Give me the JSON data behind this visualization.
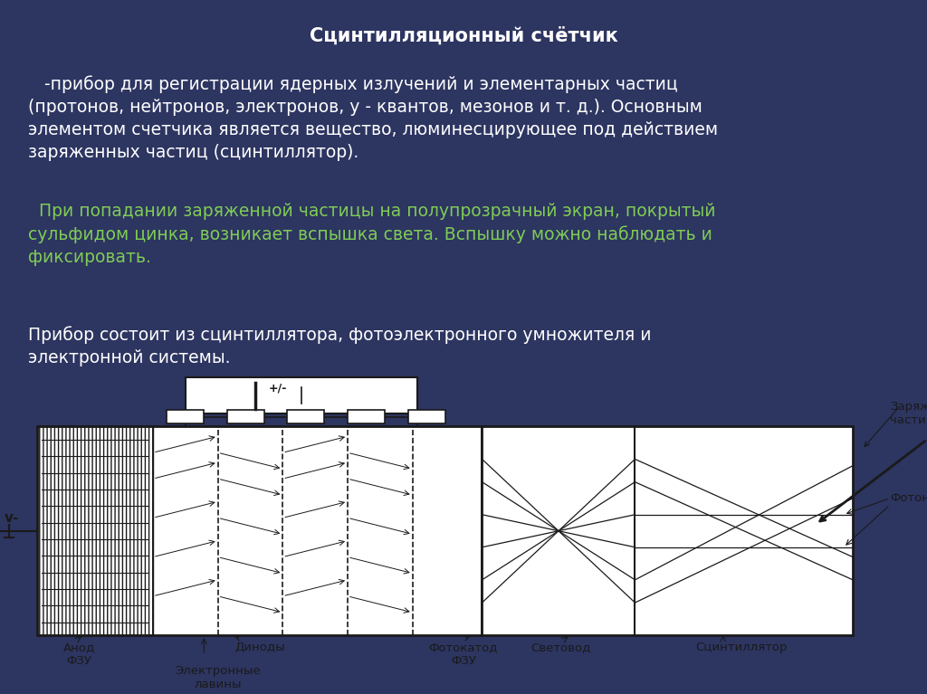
{
  "bg_color_top": "#2d3561",
  "bg_color_bottom": "#f0f0f0",
  "title": "Сцинтилляционный счётчик",
  "title_color": "#ffffff",
  "title_fontsize": 15,
  "para1": "   -прибор для регистрации ядерных излучений и элементарных частиц\n(протонов, нейтронов, электронов, у - квантов, мезонов и т. д.). Основным\nэлементом счетчика является вещество, люминесцирующее под действием\nзаряженных частиц (сцинтиллятор).",
  "para1_color": "#ffffff",
  "para1_fontsize": 13.5,
  "para2": "  При попадании заряженной частицы на полупрозрачный экран, покрытый\nсульфидом цинка, возникает вспышка света. Вспышку можно наблюдать и\nфиксировать.",
  "para2_color": "#7fcc55",
  "para2_fontsize": 13.5,
  "para3": "Прибор состоит из сцинтиллятора, фотоэлектронного умножителя и\nэлектронной системы.",
  "para3_color": "#ffffff",
  "para3_fontsize": 13.5,
  "diagram_bg": "#ffffff",
  "label_anode": "Анод\nФЗУ",
  "label_dynodes": "Диноды",
  "label_avalanche": "Электронные\nлавины",
  "label_photocathode": "Фотокатод\nФЗУ",
  "label_lightguide": "Световод",
  "label_scintillator": "Сцинтиллятор",
  "label_charged": "Заряженная\nчастица",
  "label_photons": "Фотоны",
  "label_voltage": "+/-",
  "label_output": "v-"
}
